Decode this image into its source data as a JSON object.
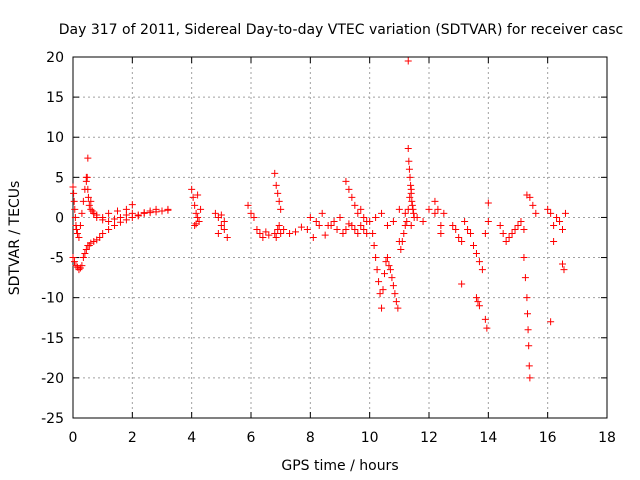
{
  "chart_data": {
    "type": "scatter",
    "title": "Day 317 of 2011, Sidereal Day-to-day VTEC variation (SDTVAR) for receiver casc",
    "xlabel": "GPS time / hours",
    "ylabel": "SDTVAR / TECUs",
    "xlim": [
      0,
      18
    ],
    "ylim": [
      -25,
      20
    ],
    "xticks": [
      "0",
      "2",
      "4",
      "6",
      "8",
      "10",
      "12",
      "14",
      "16",
      "18"
    ],
    "yticks": [
      "20",
      "15",
      "10",
      "5",
      "0",
      "-5",
      "-10",
      "-15",
      "-20",
      "-25"
    ],
    "grid": true,
    "marker": "+",
    "color": "#ff0000",
    "series": [
      {
        "name": "SDTVAR",
        "x": [
          0.0,
          0.02,
          0.04,
          0.06,
          0.08,
          0.1,
          0.12,
          0.15,
          0.2,
          0.25,
          0.3,
          0.35,
          0.4,
          0.45,
          0.5,
          0.6,
          0.7,
          0.8,
          1.0,
          1.2,
          1.4,
          1.6,
          1.8,
          2.0,
          2.2,
          2.4,
          2.6,
          2.8,
          3.0,
          3.2,
          0.0,
          0.05,
          0.1,
          0.15,
          0.2,
          0.25,
          0.3,
          0.35,
          0.4,
          0.45,
          0.5,
          0.55,
          0.6,
          0.7,
          0.8,
          0.9,
          1.0,
          1.2,
          1.4,
          1.6,
          1.8,
          2.0,
          2.2,
          2.4,
          2.6,
          2.8,
          3.0,
          3.2,
          0.45,
          0.48,
          0.5,
          0.52,
          0.55,
          0.6,
          0.65,
          0.7,
          0.8,
          1.0,
          1.2,
          1.5,
          1.8,
          2.0,
          4.0,
          4.05,
          4.1,
          4.15,
          4.2,
          4.25,
          4.3,
          4.1,
          4.15,
          4.2,
          4.8,
          4.9,
          5.0,
          5.1,
          5.2,
          4.9,
          5.0,
          5.1,
          5.9,
          6.0,
          6.1,
          6.2,
          6.3,
          6.4,
          6.5,
          6.6,
          6.8,
          6.85,
          6.9,
          6.95,
          7.0,
          7.1,
          7.3,
          7.5,
          7.7,
          7.9,
          8.1,
          8.3,
          8.5,
          8.7,
          8.9,
          9.1,
          9.3,
          9.5,
          9.7,
          9.9,
          6.8,
          6.85,
          6.9,
          6.95,
          7.0,
          8.0,
          8.2,
          8.4,
          8.6,
          8.8,
          9.0,
          9.2,
          9.4,
          9.6,
          9.8,
          10.0,
          10.2,
          10.4,
          10.6,
          10.8,
          11.0,
          11.2,
          11.4,
          11.6,
          11.8,
          12.0,
          12.2,
          12.4,
          9.2,
          9.3,
          9.4,
          9.5,
          9.6,
          9.7,
          9.8,
          9.9,
          10.1,
          10.15,
          10.2,
          10.25,
          10.3,
          10.35,
          10.4,
          10.45,
          10.5,
          10.55,
          10.6,
          10.65,
          10.7,
          10.75,
          10.8,
          10.85,
          10.9,
          10.95,
          11.0,
          11.05,
          11.1,
          11.15,
          11.2,
          11.25,
          11.3,
          11.35,
          11.4,
          11.3,
          11.32,
          11.34,
          11.36,
          11.38,
          11.4,
          11.42,
          11.44,
          11.46,
          11.48,
          11.5,
          11.3,
          12.2,
          12.3,
          12.4,
          12.5,
          12.8,
          12.9,
          13.0,
          13.1,
          13.2,
          13.3,
          13.4,
          13.5,
          13.6,
          13.7,
          13.8,
          13.9,
          14.0,
          13.1,
          13.6,
          13.65,
          13.7,
          13.9,
          13.95,
          14.0,
          14.4,
          14.5,
          14.6,
          14.7,
          14.8,
          14.9,
          15.0,
          15.1,
          15.2,
          15.3,
          15.4,
          15.5,
          15.6,
          15.2,
          15.25,
          15.3,
          15.32,
          15.34,
          15.36,
          15.38,
          15.4,
          16.0,
          16.1,
          16.2,
          16.3,
          16.4,
          16.5,
          16.6,
          16.2,
          16.5,
          16.55,
          16.1
        ],
        "y": [
          3.8,
          3.0,
          2.0,
          1.0,
          0.0,
          -1.0,
          -1.5,
          -2.0,
          -2.5,
          -1.0,
          0.5,
          2.0,
          3.5,
          5.0,
          7.4,
          2.0,
          0.5,
          0.0,
          -0.3,
          -0.5,
          -0.2,
          0.0,
          0.3,
          0.5,
          0.3,
          0.6,
          0.8,
          1.0,
          0.8,
          1.0,
          -5.0,
          -5.5,
          -6.0,
          -6.2,
          -6.5,
          -6.3,
          -6.0,
          -5.0,
          -4.5,
          -4.0,
          -3.5,
          -3.5,
          -3.2,
          -3.0,
          -2.8,
          -2.5,
          -2.0,
          -1.5,
          -1.0,
          -0.6,
          -0.3,
          0.0,
          0.2,
          0.5,
          0.6,
          0.7,
          0.8,
          0.9,
          4.5,
          5.0,
          3.5,
          2.5,
          1.5,
          1.0,
          0.8,
          0.5,
          0.3,
          0.0,
          0.5,
          0.8,
          1.0,
          1.6,
          3.5,
          2.5,
          1.5,
          0.5,
          0.0,
          -0.5,
          1.0,
          -1.0,
          -0.8,
          2.8,
          0.5,
          0.0,
          -1.0,
          -1.5,
          -2.5,
          -2.0,
          0.3,
          -0.5,
          1.5,
          0.5,
          0.0,
          -1.5,
          -2.0,
          -2.5,
          -1.8,
          -2.2,
          -2.0,
          -2.5,
          -1.5,
          -1.0,
          -2.0,
          -1.5,
          -2.0,
          -1.8,
          -1.2,
          -1.5,
          -2.5,
          -1.0,
          -2.2,
          -1.0,
          -1.5,
          -2.0,
          -0.8,
          -1.5,
          -1.0,
          -2.0,
          5.5,
          4.0,
          3.0,
          2.0,
          1.0,
          0.0,
          -0.5,
          0.5,
          -1.0,
          -0.5,
          0.0,
          -1.5,
          -1.0,
          -2.0,
          -1.5,
          -0.5,
          0.0,
          0.5,
          -1.0,
          -0.5,
          1.0,
          0.5,
          -1.0,
          0.0,
          -0.5,
          1.0,
          0.5,
          -2.0,
          4.5,
          3.5,
          2.5,
          1.5,
          0.5,
          1.0,
          0.0,
          -0.5,
          -2.0,
          -3.5,
          -5.0,
          -6.5,
          -8.0,
          -9.5,
          -11.3,
          -9.0,
          -7.0,
          -5.5,
          -5.0,
          -6.0,
          -6.5,
          -7.5,
          -8.5,
          -9.5,
          -10.5,
          -11.3,
          -3.0,
          -4.0,
          -3.0,
          -2.0,
          -1.0,
          -0.5,
          1.0,
          2.5,
          3.5,
          8.6,
          7.0,
          6.0,
          5.0,
          4.0,
          3.0,
          2.0,
          1.5,
          1.0,
          0.5,
          0.0,
          19.5,
          2.0,
          1.0,
          -1.0,
          0.5,
          -1.0,
          -1.5,
          -2.5,
          -3.0,
          -0.5,
          -1.5,
          -2.0,
          -3.5,
          -4.5,
          -5.5,
          -6.5,
          -2.0,
          -0.5,
          -8.3,
          -10.0,
          -10.5,
          -11.0,
          -12.7,
          -13.8,
          1.8,
          -1.0,
          -2.0,
          -3.0,
          -2.5,
          -2.0,
          -1.5,
          -1.0,
          -0.5,
          -1.5,
          2.8,
          2.5,
          1.5,
          0.5,
          -5.0,
          -7.5,
          -10.0,
          -12.0,
          -14.0,
          -16.0,
          -18.5,
          -20.0,
          1.0,
          0.5,
          -1.0,
          0.0,
          -0.5,
          -1.5,
          0.5,
          -3.0,
          -5.8,
          -6.5,
          -13.0
        ]
      }
    ]
  }
}
